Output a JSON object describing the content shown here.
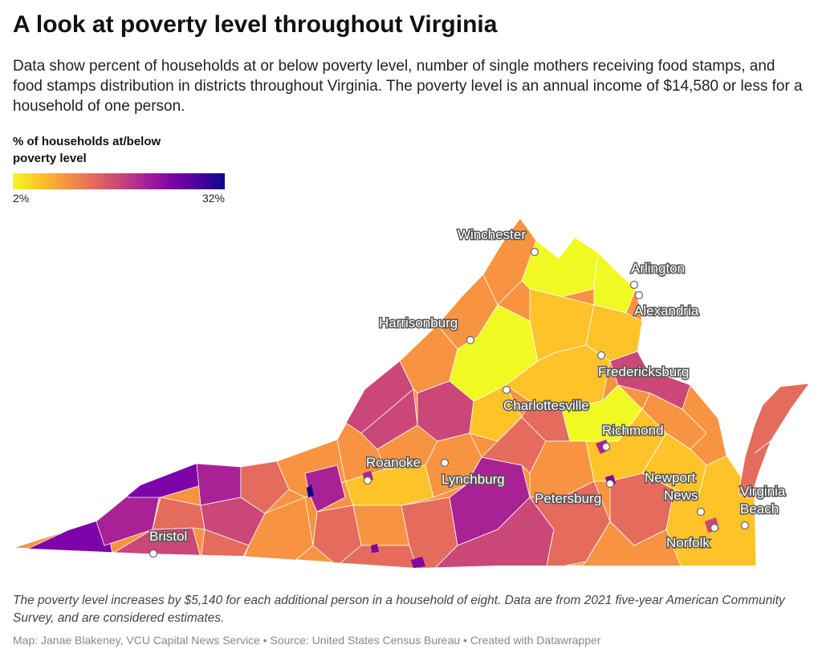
{
  "header": {
    "title": "A look at poverty level throughout Virginia",
    "subtitle": "Data show percent of households at or below poverty level, number of single mothers receiving food stamps, and food stamps distribution in districts throughout Virginia. The poverty level is an annual income of $14,580 or less for a household of one person."
  },
  "legend": {
    "title": "% of households at/below poverty level",
    "min_label": "2%",
    "max_label": "32%",
    "colors": [
      "#f0f921",
      "#fdc328",
      "#f89441",
      "#e56b5d",
      "#cb4778",
      "#a82296",
      "#7e03a8",
      "#4c02a1",
      "#0d0887"
    ]
  },
  "map": {
    "region": "Virginia",
    "cities": [
      {
        "name": "Winchester"
      },
      {
        "name": "Arlington"
      },
      {
        "name": "Alexandria"
      },
      {
        "name": "Harrisonburg"
      },
      {
        "name": "Fredericksburg"
      },
      {
        "name": "Charlottesville"
      },
      {
        "name": "Richmond"
      },
      {
        "name": "Roanoke"
      },
      {
        "name": "Lynchburg"
      },
      {
        "name": "Newport News"
      },
      {
        "name": "Petersburg"
      },
      {
        "name": "Virginia Beach"
      },
      {
        "name": "Bristol"
      },
      {
        "name": "Norfolk"
      }
    ]
  },
  "footer": {
    "notes": "The poverty level increases by $5,140 for each additional person in a household of eight. Data are from 2021 five-year American Community Survey, and are considered estimates.",
    "credit": "Map: Janae Blakeney, VCU Capital News Service • Source: United States Census Bureau • Created with Datawrapper"
  }
}
